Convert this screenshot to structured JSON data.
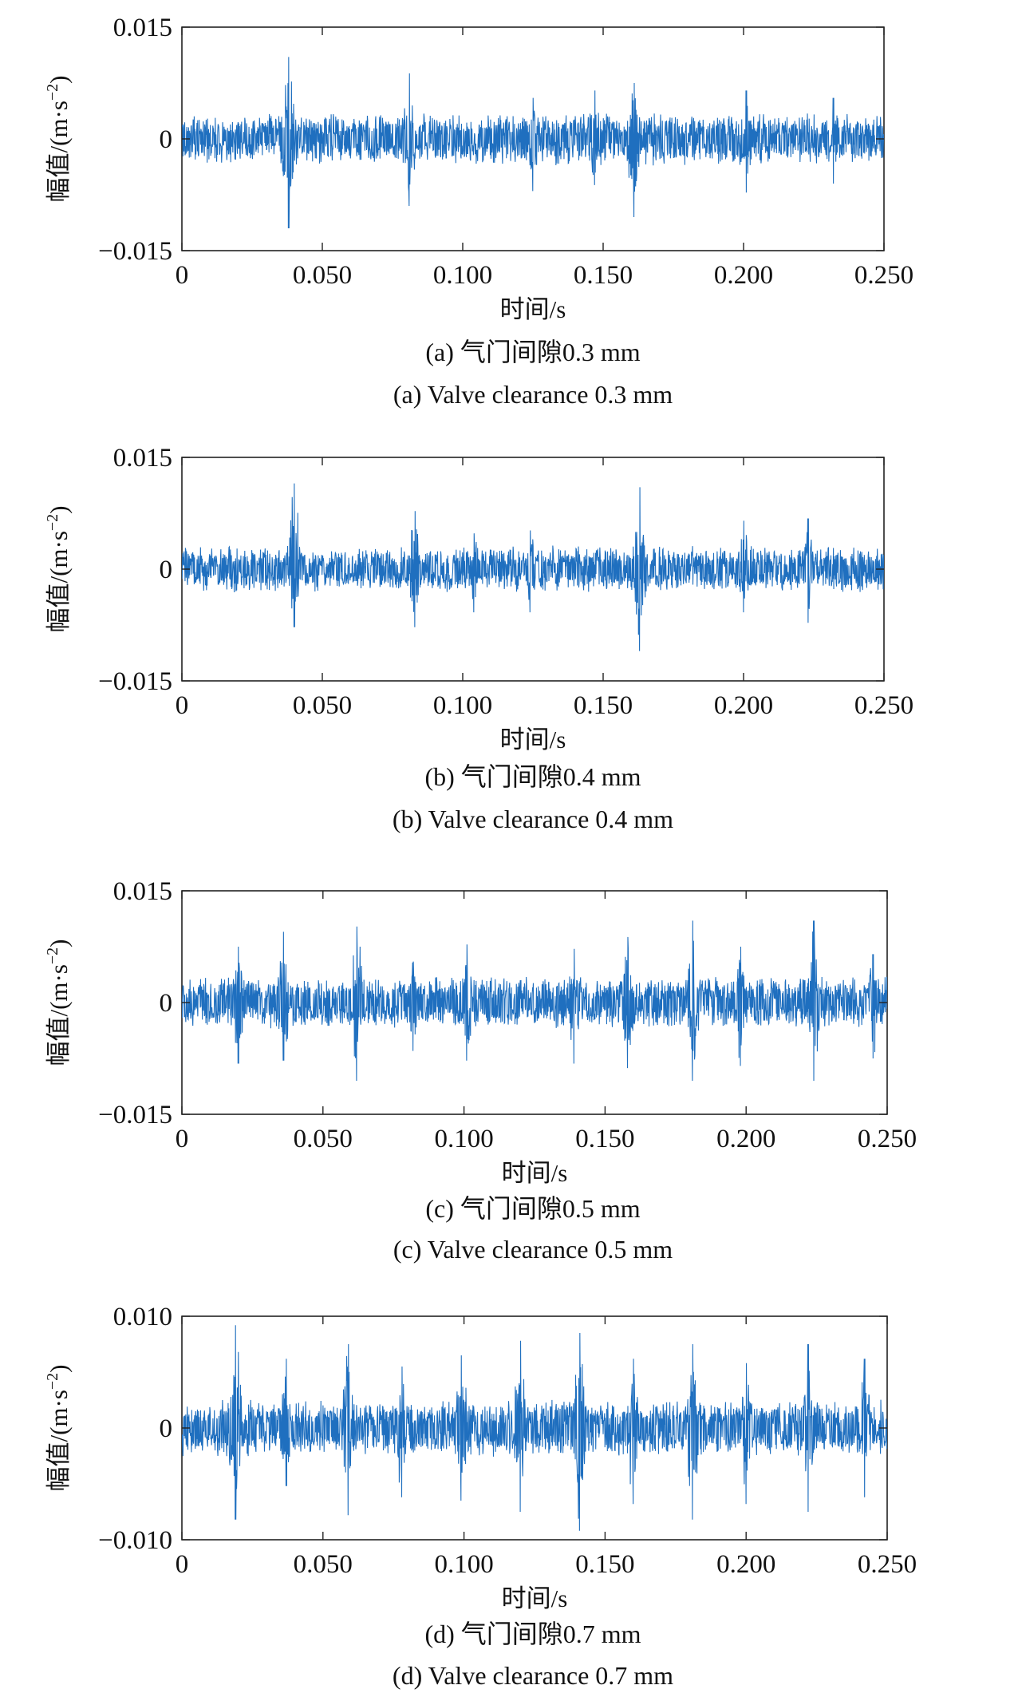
{
  "chart_data": [
    {
      "type": "line",
      "caption_cn": "(a) 气门间隙0.3 mm",
      "caption_en": "(a) Valve clearance 0.3 mm",
      "xlabel": "时间/s",
      "ylabel_main": "幅值/(m·s",
      "ylabel_sup": "−2",
      "ylabel_close": ")",
      "xlim": [
        0,
        0.25
      ],
      "ylim": [
        -0.015,
        0.015
      ],
      "x_ticks": [
        0,
        0.05,
        0.1,
        0.15,
        0.2,
        0.25
      ],
      "x_tick_labels": [
        "0",
        "0.050",
        "0.100",
        "0.150",
        "0.200",
        "0.250"
      ],
      "y_ticks": [
        -0.015,
        0,
        0.015
      ],
      "y_tick_labels": [
        "−0.015",
        "0",
        "0.015"
      ],
      "color": "#1f6fbf",
      "signal": {
        "baseline_amplitude": 0.0036,
        "seed": 11,
        "bursts": [
          {
            "t": 0.038,
            "peak": 0.011,
            "trough": -0.012
          },
          {
            "t": 0.081,
            "peak": 0.0088,
            "trough": -0.009
          },
          {
            "t": 0.125,
            "peak": 0.0055,
            "trough": -0.007
          },
          {
            "t": 0.147,
            "peak": 0.0065,
            "trough": -0.0062
          },
          {
            "t": 0.161,
            "peak": 0.0075,
            "trough": -0.0105
          },
          {
            "t": 0.201,
            "peak": 0.0065,
            "trough": -0.0072
          },
          {
            "t": 0.232,
            "peak": 0.0055,
            "trough": -0.006
          }
        ]
      }
    },
    {
      "type": "line",
      "caption_cn": "(b) 气门间隙0.4 mm",
      "caption_en": "(b) Valve clearance 0.4 mm",
      "xlabel": "时间/s",
      "ylabel_main": "幅值/(m·s",
      "ylabel_sup": "−2",
      "ylabel_close": ")",
      "xlim": [
        0,
        0.25
      ],
      "ylim": [
        -0.015,
        0.015
      ],
      "x_ticks": [
        0,
        0.05,
        0.1,
        0.15,
        0.2,
        0.25
      ],
      "x_tick_labels": [
        "0",
        "0.050",
        "0.100",
        "0.150",
        "0.200",
        "0.250"
      ],
      "y_ticks": [
        -0.015,
        0,
        0.015
      ],
      "y_tick_labels": [
        "−0.015",
        "0",
        "0.015"
      ],
      "color": "#1f6fbf",
      "signal": {
        "baseline_amplitude": 0.0032,
        "seed": 23,
        "bursts": [
          {
            "t": 0.04,
            "peak": 0.0115,
            "trough": -0.0078
          },
          {
            "t": 0.083,
            "peak": 0.0078,
            "trough": -0.0078
          },
          {
            "t": 0.104,
            "peak": 0.0048,
            "trough": -0.0058
          },
          {
            "t": 0.124,
            "peak": 0.0052,
            "trough": -0.0058
          },
          {
            "t": 0.163,
            "peak": 0.011,
            "trough": -0.011
          },
          {
            "t": 0.2,
            "peak": 0.0065,
            "trough": -0.0058
          },
          {
            "t": 0.223,
            "peak": 0.0068,
            "trough": -0.0072
          }
        ]
      }
    },
    {
      "type": "line",
      "caption_cn": "(c) 气门间隙0.5 mm",
      "caption_en": "(c) Valve clearance 0.5 mm",
      "xlabel": "时间/s",
      "ylabel_main": "幅值/(m·s",
      "ylabel_sup": "−2",
      "ylabel_close": ")",
      "xlim": [
        0,
        0.25
      ],
      "ylim": [
        -0.015,
        0.015
      ],
      "x_ticks": [
        0,
        0.05,
        0.1,
        0.15,
        0.2,
        0.25
      ],
      "x_tick_labels": [
        "0",
        "0.050",
        "0.100",
        "0.150",
        "0.200",
        "0.250"
      ],
      "y_ticks": [
        -0.015,
        0,
        0.015
      ],
      "y_tick_labels": [
        "−0.015",
        "0",
        "0.015"
      ],
      "color": "#1f6fbf",
      "signal": {
        "baseline_amplitude": 0.0036,
        "seed": 37,
        "bursts": [
          {
            "t": 0.02,
            "peak": 0.0075,
            "trough": -0.0082
          },
          {
            "t": 0.036,
            "peak": 0.0095,
            "trough": -0.0078
          },
          {
            "t": 0.062,
            "peak": 0.0102,
            "trough": -0.0105
          },
          {
            "t": 0.082,
            "peak": 0.0055,
            "trough": -0.0065
          },
          {
            "t": 0.101,
            "peak": 0.0078,
            "trough": -0.0078
          },
          {
            "t": 0.139,
            "peak": 0.0072,
            "trough": -0.0082
          },
          {
            "t": 0.158,
            "peak": 0.0088,
            "trough": -0.0088
          },
          {
            "t": 0.181,
            "peak": 0.011,
            "trough": -0.0105
          },
          {
            "t": 0.198,
            "peak": 0.0075,
            "trough": -0.0085
          },
          {
            "t": 0.224,
            "peak": 0.011,
            "trough": -0.0105
          },
          {
            "t": 0.245,
            "peak": 0.0065,
            "trough": -0.0075
          }
        ]
      }
    },
    {
      "type": "line",
      "caption_cn": "(d) 气门间隙0.7 mm",
      "caption_en": "(d) Valve clearance 0.7 mm",
      "xlabel": "时间/s",
      "ylabel_main": "幅值/(m·s",
      "ylabel_sup": "−2",
      "ylabel_close": ")",
      "xlim": [
        0,
        0.25
      ],
      "ylim": [
        -0.01,
        0.01
      ],
      "x_ticks": [
        0,
        0.05,
        0.1,
        0.15,
        0.2,
        0.25
      ],
      "x_tick_labels": [
        "0",
        "0.050",
        "0.100",
        "0.150",
        "0.200",
        "0.250"
      ],
      "y_ticks": [
        -0.01,
        0,
        0.01
      ],
      "y_tick_labels": [
        "−0.010",
        "0",
        "0.010"
      ],
      "color": "#1f6fbf",
      "signal": {
        "baseline_amplitude": 0.0026,
        "seed": 51,
        "bursts": [
          {
            "t": 0.019,
            "peak": 0.0092,
            "trough": -0.0082
          },
          {
            "t": 0.037,
            "peak": 0.0062,
            "trough": -0.0052
          },
          {
            "t": 0.059,
            "peak": 0.0075,
            "trough": -0.0078
          },
          {
            "t": 0.078,
            "peak": 0.0055,
            "trough": -0.0062
          },
          {
            "t": 0.099,
            "peak": 0.0065,
            "trough": -0.0065
          },
          {
            "t": 0.12,
            "peak": 0.0078,
            "trough": -0.0075
          },
          {
            "t": 0.141,
            "peak": 0.0085,
            "trough": -0.0092
          },
          {
            "t": 0.16,
            "peak": 0.0062,
            "trough": -0.0068
          },
          {
            "t": 0.181,
            "peak": 0.0075,
            "trough": -0.0082
          },
          {
            "t": 0.2,
            "peak": 0.0058,
            "trough": -0.0068
          },
          {
            "t": 0.222,
            "peak": 0.0075,
            "trough": -0.0075
          },
          {
            "t": 0.242,
            "peak": 0.0062,
            "trough": -0.0062
          }
        ]
      }
    }
  ]
}
